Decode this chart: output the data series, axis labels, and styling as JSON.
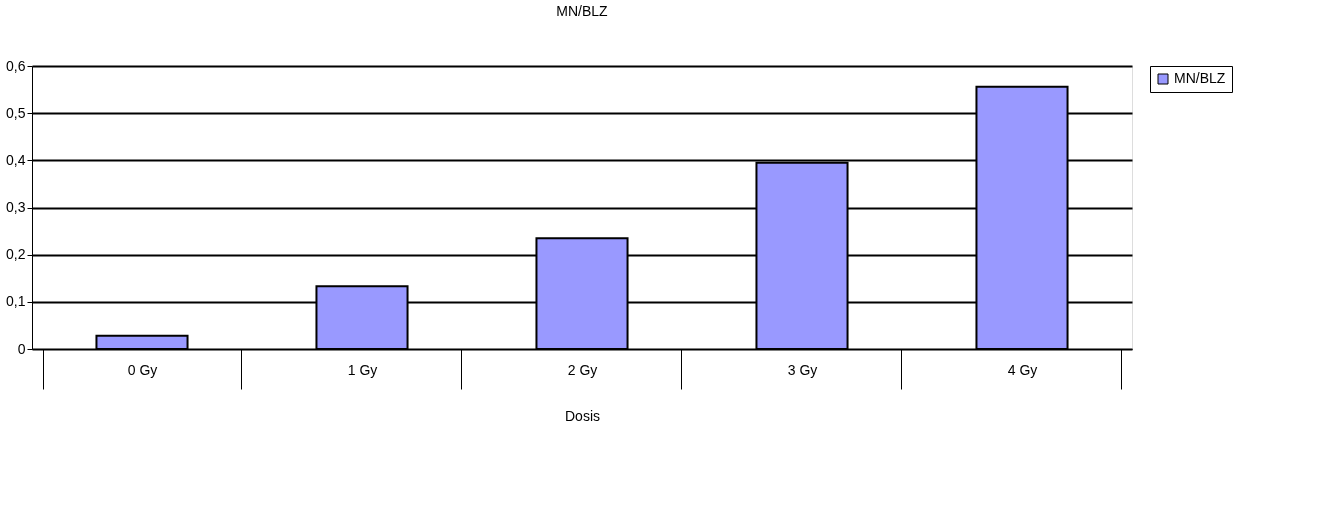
{
  "chart_data": {
    "type": "bar",
    "title": "MN/BLZ",
    "xlabel": "Dosis",
    "categories": [
      "0 Gy",
      "1 Gy",
      "2 Gy",
      "3 Gy",
      "4 Gy"
    ],
    "series": [
      {
        "name": "MN/BLZ",
        "color": "#9999ff",
        "values": [
          0.028,
          0.133,
          0.235,
          0.395,
          0.556
        ]
      }
    ],
    "ylim": [
      0,
      0.6
    ],
    "yticks": [
      0,
      {
        "value": 0.1,
        "label": "0,1"
      },
      {
        "value": 0.2,
        "label": "0,2"
      },
      {
        "value": 0.3,
        "label": "0,3"
      },
      {
        "value": 0.4,
        "label": "0,4"
      },
      {
        "value": 0.5,
        "label": "0,5"
      },
      {
        "value": 0.6,
        "label": "0,6"
      }
    ],
    "grid": "y",
    "legend": "right"
  }
}
